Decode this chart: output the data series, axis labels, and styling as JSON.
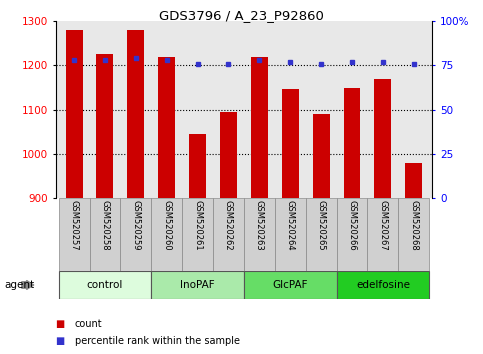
{
  "title": "GDS3796 / A_23_P92860",
  "samples": [
    "GSM520257",
    "GSM520258",
    "GSM520259",
    "GSM520260",
    "GSM520261",
    "GSM520262",
    "GSM520263",
    "GSM520264",
    "GSM520265",
    "GSM520266",
    "GSM520267",
    "GSM520268"
  ],
  "counts": [
    1280,
    1225,
    1280,
    1220,
    1045,
    1095,
    1220,
    1148,
    1090,
    1150,
    1170,
    980
  ],
  "percentiles": [
    78,
    78,
    79,
    78,
    76,
    76,
    78,
    77,
    76,
    77,
    77,
    76
  ],
  "bar_color": "#cc0000",
  "dot_color": "#3333cc",
  "ylim_left": [
    900,
    1300
  ],
  "ylim_right": [
    0,
    100
  ],
  "yticks_left": [
    900,
    1000,
    1100,
    1200,
    1300
  ],
  "yticks_right": [
    0,
    25,
    50,
    75,
    100
  ],
  "yticklabels_right": [
    "0",
    "25",
    "50",
    "75",
    "100%"
  ],
  "groups": [
    {
      "label": "control",
      "start": 0,
      "end": 3,
      "color": "#ddfcdd"
    },
    {
      "label": "InoPAF",
      "start": 3,
      "end": 6,
      "color": "#aaeaaa"
    },
    {
      "label": "GlcPAF",
      "start": 6,
      "end": 9,
      "color": "#66dd66"
    },
    {
      "label": "edelfosine",
      "start": 9,
      "end": 12,
      "color": "#22cc22"
    }
  ],
  "agent_label": "agent",
  "legend_count_label": "count",
  "legend_pct_label": "percentile rank within the sample",
  "bg_color": "#ffffff",
  "plot_bg_color": "#e8e8e8",
  "bar_width": 0.55,
  "xlabel_bg": "#d0d0d0"
}
